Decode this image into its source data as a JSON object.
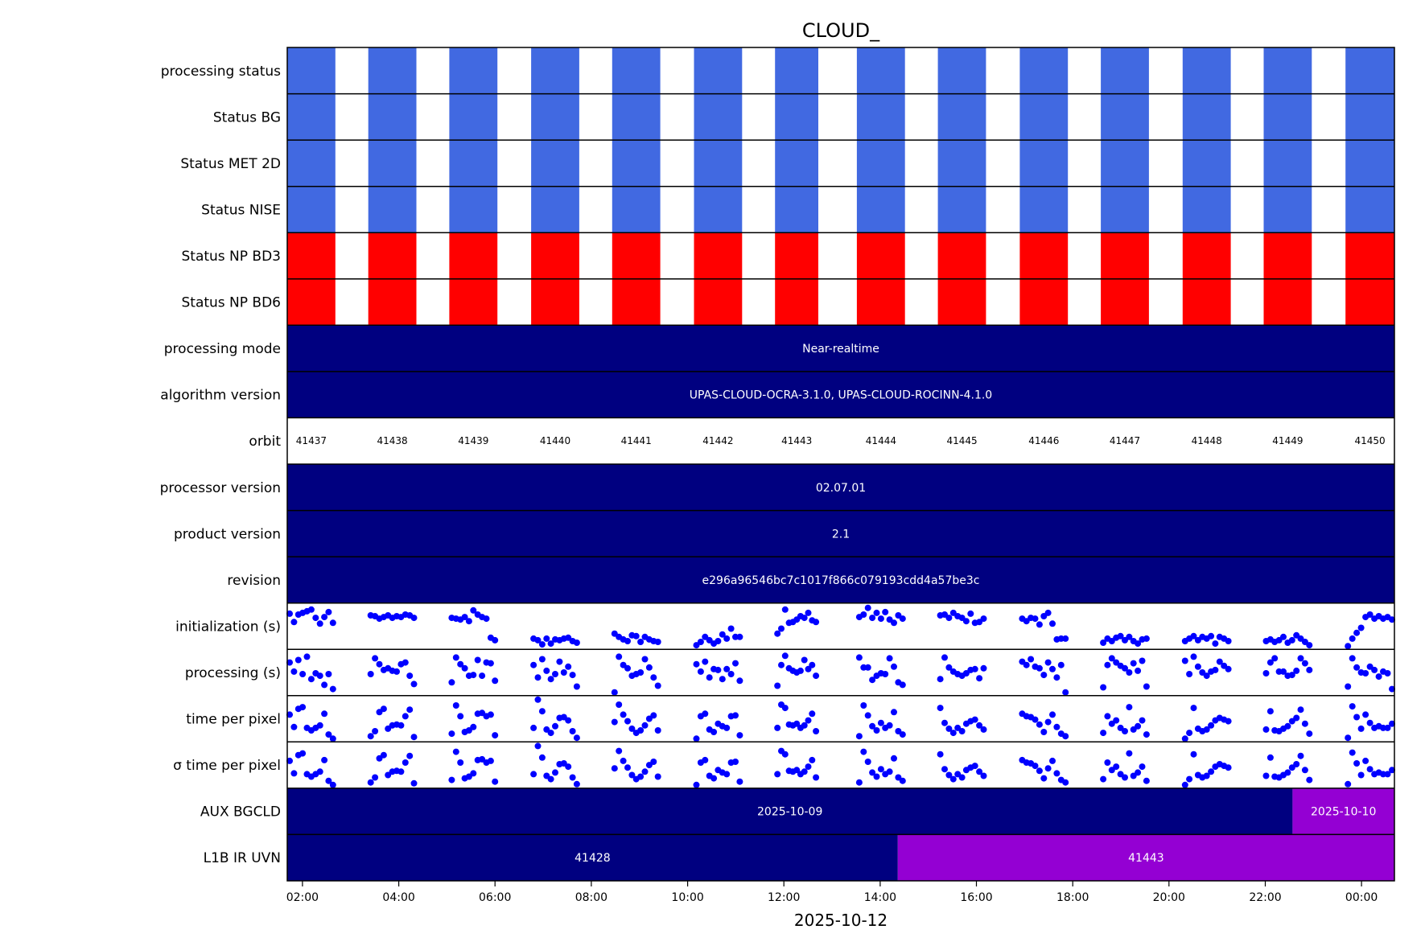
{
  "chart_data": {
    "type": "timeline",
    "title": "CLOUD_",
    "xlabel": "2025-10-12",
    "x_ticks": [
      "02:00",
      "04:00",
      "06:00",
      "08:00",
      "10:00",
      "12:00",
      "14:00",
      "16:00",
      "18:00",
      "20:00",
      "22:00",
      "00:00"
    ],
    "xlim": [
      "2025-10-12T01:41",
      "2025-10-13T00:41"
    ],
    "orbits": [
      {
        "orbit": "41437",
        "start": "01:41",
        "end": "02:41"
      },
      {
        "orbit": "41438",
        "start": "03:22",
        "end": "04:22"
      },
      {
        "orbit": "41439",
        "start": "05:03",
        "end": "06:03"
      },
      {
        "orbit": "41440",
        "start": "06:45",
        "end": "07:45"
      },
      {
        "orbit": "41441",
        "start": "08:26",
        "end": "09:26"
      },
      {
        "orbit": "41442",
        "start": "10:08",
        "end": "11:08"
      },
      {
        "orbit": "41443",
        "start": "11:49",
        "end": "12:43"
      },
      {
        "orbit": "41444",
        "start": "13:31",
        "end": "14:31"
      },
      {
        "orbit": "41445",
        "start": "15:12",
        "end": "16:12"
      },
      {
        "orbit": "41446",
        "start": "16:54",
        "end": "17:54"
      },
      {
        "orbit": "41447",
        "start": "18:35",
        "end": "19:35"
      },
      {
        "orbit": "41448",
        "start": "20:17",
        "end": "21:17"
      },
      {
        "orbit": "41449",
        "start": "21:58",
        "end": "22:58"
      },
      {
        "orbit": "41450",
        "start": "23:40",
        "end": "00:41"
      }
    ],
    "rows": [
      {
        "label": "processing status",
        "kind": "status",
        "color": "#4169e1"
      },
      {
        "label": "Status BG",
        "kind": "status",
        "color": "#4169e1"
      },
      {
        "label": "Status MET 2D",
        "kind": "status",
        "color": "#4169e1"
      },
      {
        "label": "Status NISE",
        "kind": "status",
        "color": "#4169e1"
      },
      {
        "label": "Status NP BD3",
        "kind": "status",
        "color": "#ff0000"
      },
      {
        "label": "Status NP BD6",
        "kind": "status",
        "color": "#ff0000"
      },
      {
        "label": "processing mode",
        "kind": "text",
        "segments": [
          {
            "text": "Near-realtime",
            "color": "#000080",
            "start": "01:41",
            "end": "00:41"
          }
        ]
      },
      {
        "label": "algorithm version",
        "kind": "text",
        "segments": [
          {
            "text": "UPAS-CLOUD-OCRA-3.1.0, UPAS-CLOUD-ROCINN-4.1.0",
            "color": "#000080",
            "start": "01:41",
            "end": "00:41"
          }
        ]
      },
      {
        "label": "orbit",
        "kind": "orbit"
      },
      {
        "label": "processor version",
        "kind": "text",
        "segments": [
          {
            "text": "02.07.01",
            "color": "#000080",
            "start": "01:41",
            "end": "00:41"
          }
        ]
      },
      {
        "label": "product version",
        "kind": "text",
        "segments": [
          {
            "text": "2.1",
            "color": "#000080",
            "start": "01:41",
            "end": "00:41"
          }
        ]
      },
      {
        "label": "revision",
        "kind": "text",
        "segments": [
          {
            "text": "e296a96546bc7c1017f866c079193cdd4a57be3c",
            "color": "#000080",
            "start": "01:41",
            "end": "00:41"
          }
        ]
      },
      {
        "label": "initialization (s)",
        "kind": "scatter",
        "pattern": "init"
      },
      {
        "label": "processing (s)",
        "kind": "scatter",
        "pattern": "proc"
      },
      {
        "label": "time per pixel",
        "kind": "scatter",
        "pattern": "tpp"
      },
      {
        "label": "σ time per pixel",
        "kind": "scatter",
        "pattern": "tpp"
      },
      {
        "label": "AUX BGCLD",
        "kind": "text",
        "segments": [
          {
            "text": "2025-10-09",
            "color": "#000080",
            "start": "01:41",
            "end": "22:34"
          },
          {
            "text": "2025-10-10",
            "color": "#9400d3",
            "start": "22:34",
            "end": "00:41"
          }
        ]
      },
      {
        "label": "L1B IR UVN",
        "kind": "text",
        "segments": [
          {
            "text": "41428",
            "color": "#000080",
            "start": "01:41",
            "end": "14:22"
          },
          {
            "text": "41443",
            "color": "#9400d3",
            "start": "14:22",
            "end": "00:41"
          }
        ]
      }
    ],
    "scatter_color": "#0000ff"
  }
}
